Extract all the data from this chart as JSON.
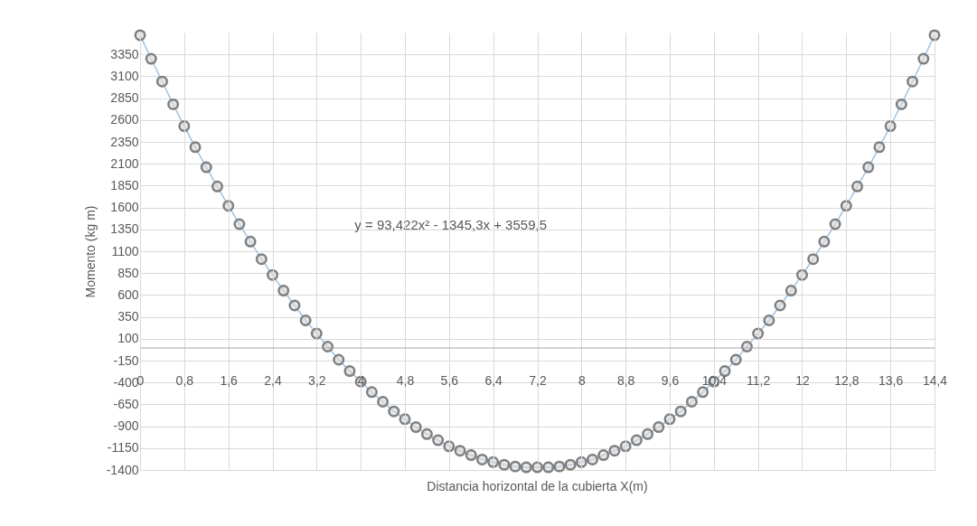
{
  "chart_data": {
    "type": "line",
    "xlabel": "Distancia horizontal de la cubierta X(m)",
    "ylabel": "Momento (kg m)",
    "annotations": [
      "y = 93,422x² - 1345,3x + 3559,5"
    ],
    "x": [
      0,
      0.2,
      0.4,
      0.6,
      0.8,
      1,
      1.2,
      1.4,
      1.6,
      1.8,
      2,
      2.2,
      2.4,
      2.6,
      2.8,
      3,
      3.2,
      3.4,
      3.6,
      3.8,
      4,
      4.2,
      4.4,
      4.6,
      4.8,
      5,
      5.2,
      5.4,
      5.6,
      5.8,
      6,
      6.2,
      6.4,
      6.6,
      6.8,
      7,
      7.2,
      7.4,
      7.6,
      7.8,
      8,
      8.2,
      8.4,
      8.6,
      8.8,
      9,
      9.2,
      9.4,
      9.6,
      9.8,
      10,
      10.2,
      10.4,
      10.6,
      10.8,
      11,
      11.2,
      11.4,
      11.6,
      11.8,
      12,
      12.2,
      12.4,
      12.6,
      12.8,
      13,
      13.2,
      13.4,
      13.6,
      13.8,
      14,
      14.2,
      14.4
    ],
    "series": [
      {
        "color": "#9dc3e6",
        "values": [
          3570,
          3300,
          3040,
          2780,
          2530,
          2290,
          2060,
          1840,
          1620,
          1410,
          1210,
          1010,
          830,
          650,
          480,
          310,
          160,
          10,
          -140,
          -270,
          -390,
          -510,
          -620,
          -730,
          -820,
          -910,
          -990,
          -1060,
          -1130,
          -1180,
          -1230,
          -1280,
          -1310,
          -1340,
          -1360,
          -1370,
          -1370,
          -1370,
          -1360,
          -1340,
          -1310,
          -1280,
          -1230,
          -1180,
          -1130,
          -1060,
          -990,
          -910,
          -820,
          -730,
          -620,
          -510,
          -390,
          -270,
          -140,
          10,
          160,
          310,
          480,
          650,
          830,
          1010,
          1210,
          1410,
          1620,
          1840,
          2060,
          2290,
          2530,
          2780,
          3040,
          3300,
          3570
        ]
      }
    ],
    "marker": "circle",
    "line_style": "solid",
    "grid": true,
    "xlim": [
      0,
      14.4
    ],
    "xticks": [
      0,
      {
        "value": 0.8,
        "label": "0,8"
      },
      {
        "value": 1.6,
        "label": "1,6"
      },
      {
        "value": 2.4,
        "label": "2,4"
      },
      {
        "value": 3.2,
        "label": "3,2"
      },
      4,
      {
        "value": 4.8,
        "label": "4,8"
      },
      {
        "value": 5.6,
        "label": "5,6"
      },
      {
        "value": 6.4,
        "label": "6,4"
      },
      {
        "value": 7.2,
        "label": "7,2"
      },
      8,
      {
        "value": 8.8,
        "label": "8,8"
      },
      {
        "value": 9.6,
        "label": "9,6"
      },
      {
        "value": 10.4,
        "label": "10,4"
      },
      {
        "value": 11.2,
        "label": "11,2"
      },
      12,
      {
        "value": 12.8,
        "label": "12,8"
      },
      {
        "value": 13.6,
        "label": "13,6"
      },
      {
        "value": 14.4,
        "label": "14,4"
      }
    ],
    "ylim": [
      -1400,
      3600
    ],
    "yticks": [
      -1400,
      -1150,
      -900,
      -650,
      -400,
      -150,
      100,
      350,
      600,
      850,
      1100,
      1350,
      1600,
      1850,
      2100,
      2350,
      2600,
      2850,
      3100,
      3350
    ]
  }
}
